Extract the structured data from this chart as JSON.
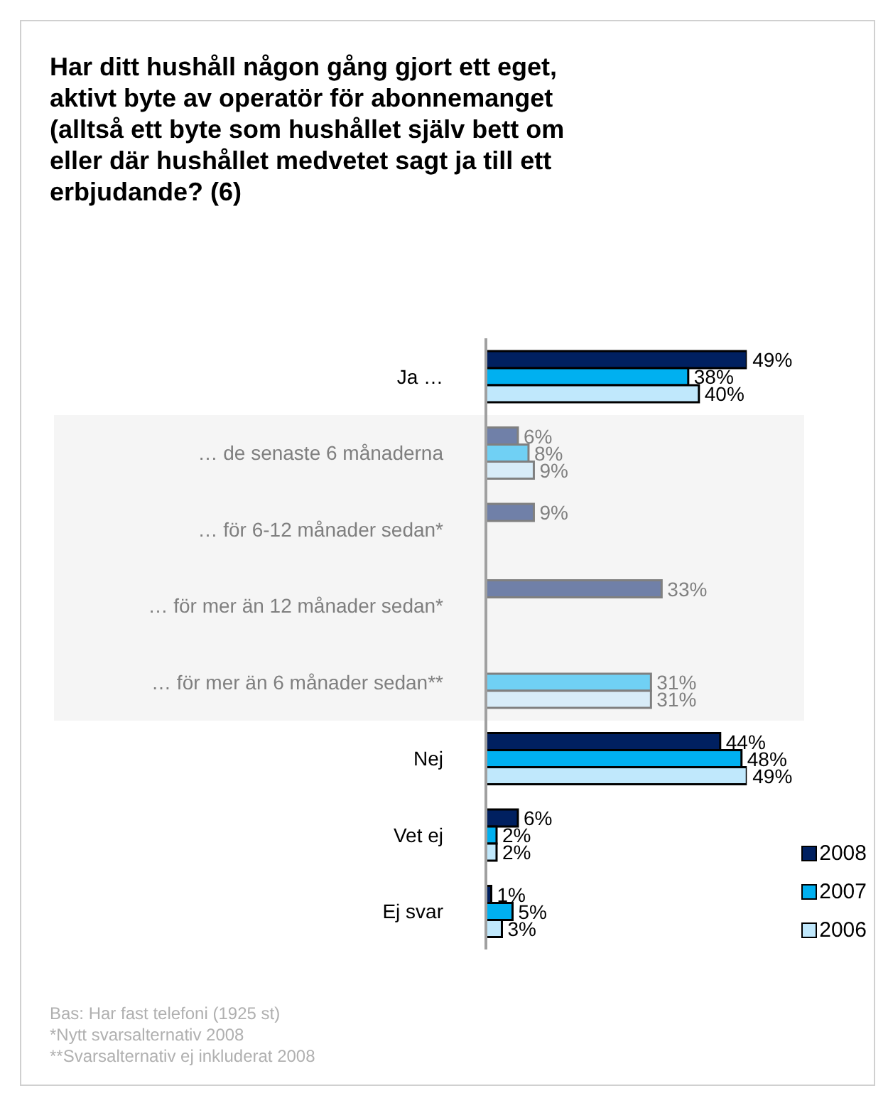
{
  "chart_data": {
    "type": "bar",
    "orientation": "horizontal",
    "title": "Har ditt hushåll någon gång gjort ett eget, aktivt byte av operatör för abonnemanget (alltså ett byte som hushållet själv bett om eller där hushållet medvetet sagt ja till ett erbjudande? (6)",
    "categories": [
      "Ja …",
      "… de senaste 6 månaderna",
      "… för 6-12 månader sedan*",
      "… för mer än 12 månader sedan*",
      "… för mer än 6 månader sedan**",
      "Nej",
      "Vet ej",
      "Ej svar"
    ],
    "series": [
      {
        "name": "2008",
        "color": "#002060",
        "colors": [
          "#002060",
          "#7080a8",
          "#7080a8",
          "#7080a8",
          "#7080a8",
          "#002060",
          "#002060",
          "#002060"
        ],
        "values": [
          49,
          6,
          9,
          33,
          null,
          44,
          6,
          1
        ],
        "value_labels": [
          "49%",
          "6%",
          "9%",
          "33%",
          null,
          "44%",
          "6%",
          "1%"
        ]
      },
      {
        "name": "2007",
        "color": "#00b0f0",
        "colors": [
          "#00b0f0",
          "#70d0f4",
          "#70d0f4",
          "#70d0f4",
          "#70d0f4",
          "#00b0f0",
          "#00b0f0",
          "#00b0f0"
        ],
        "values": [
          38,
          8,
          null,
          null,
          31,
          48,
          2,
          5
        ],
        "value_labels": [
          "38%",
          "8%",
          null,
          null,
          "31%",
          "48%",
          "2%",
          "5%"
        ]
      },
      {
        "name": "2006",
        "color": "#c0e8fc",
        "colors": [
          "#c0e8fc",
          "#d8ecf8",
          "#d8ecf8",
          "#d8ecf8",
          "#d8ecf8",
          "#c0e8fc",
          "#c0e8fc",
          "#c0e8fc"
        ],
        "values": [
          40,
          9,
          null,
          null,
          31,
          49,
          2,
          3
        ],
        "value_labels": [
          "40%",
          "9%",
          null,
          null,
          "31%",
          "49%",
          "2%",
          "3%"
        ]
      }
    ],
    "bands": [
      {
        "axis": "y",
        "from": "… de senaste 6 månaderna",
        "to": "… för mer än 6 månader sedan**",
        "color": "#f5f5f5"
      }
    ],
    "legend": "bottom right",
    "tick_labels": "y",
    "annotations": [
      "Bas: Har fast telefoni (1925 st)",
      "*Nytt svarsalternativ 2008",
      "**Svarsalternativ ej inkluderat 2008"
    ]
  }
}
